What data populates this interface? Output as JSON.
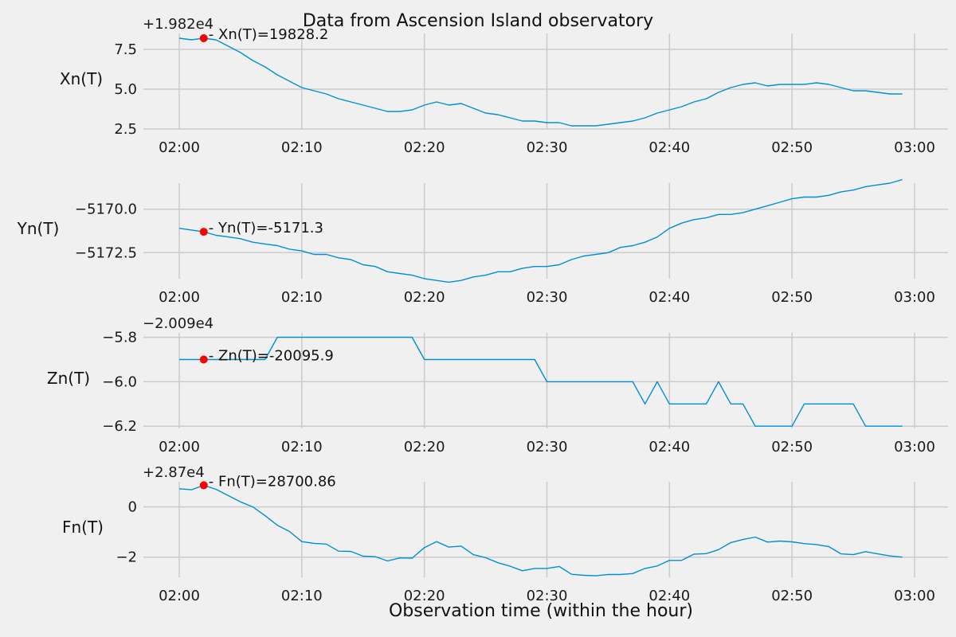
{
  "chart_data": {
    "type": "line",
    "title": "Data from  Ascension Island observatory",
    "xlabel": "Observation time (within the hour)",
    "x_tick_labels": [
      "02:00",
      "02:10",
      "02:20",
      "02:30",
      "02:40",
      "02:50",
      "03:00"
    ],
    "x_minutes": [
      0,
      1,
      2,
      3,
      4,
      5,
      6,
      7,
      8,
      9,
      10,
      11,
      12,
      13,
      14,
      15,
      16,
      17,
      18,
      19,
      20,
      21,
      22,
      23,
      24,
      25,
      26,
      27,
      28,
      29,
      30,
      31,
      32,
      33,
      34,
      35,
      36,
      37,
      38,
      39,
      40,
      41,
      42,
      43,
      44,
      45,
      46,
      47,
      48,
      49,
      50,
      51,
      52,
      53,
      54,
      55,
      56,
      57,
      58,
      59
    ],
    "grid": true,
    "line_color": "#008fd5",
    "marker_color": "#ff0000",
    "panels": [
      {
        "name": "Xn(T)",
        "ylabel": "Xn(T)",
        "offset_label": "+1.982e4",
        "yticks": [
          "7.5",
          "5.0",
          "2.5"
        ],
        "ytick_values": [
          19827.5,
          19825.0,
          19822.5
        ],
        "ylim": [
          19822.5,
          19828.5
        ],
        "values": [
          19828.2,
          19828.1,
          19828.2,
          19828.1,
          19827.7,
          19827.3,
          19826.8,
          19826.4,
          19825.9,
          19825.5,
          19825.1,
          19824.9,
          19824.7,
          19824.4,
          19824.2,
          19824.0,
          19823.8,
          19823.6,
          19823.6,
          19823.7,
          19824.0,
          19824.2,
          19824.0,
          19824.1,
          19823.8,
          19823.5,
          19823.4,
          19823.2,
          19823.0,
          19823.0,
          19822.9,
          19822.9,
          19822.7,
          19822.7,
          19822.7,
          19822.8,
          19822.9,
          19823.0,
          19823.2,
          19823.5,
          19823.7,
          19823.9,
          19824.2,
          19824.4,
          19824.8,
          19825.1,
          19825.3,
          19825.4,
          19825.2,
          19825.3,
          19825.3,
          19825.3,
          19825.4,
          19825.3,
          19825.1,
          19824.9,
          19824.9,
          19824.8,
          19824.7,
          19824.7
        ],
        "marker": {
          "minute": 2,
          "value": 19828.2,
          "label": "- Xn(T)=19828.2"
        }
      },
      {
        "name": "Yn(T)",
        "ylabel": "Yn(T)",
        "offset_label": "",
        "yticks": [
          "−5170.0",
          "−5172.5"
        ],
        "ytick_values": [
          -5170.0,
          -5172.5
        ],
        "ylim": [
          -5174.0,
          -5168.5
        ],
        "values": [
          -5171.1,
          -5171.2,
          -5171.3,
          -5171.5,
          -5171.6,
          -5171.7,
          -5171.9,
          -5172.0,
          -5172.1,
          -5172.3,
          -5172.4,
          -5172.6,
          -5172.6,
          -5172.8,
          -5172.9,
          -5173.2,
          -5173.3,
          -5173.6,
          -5173.7,
          -5173.8,
          -5174.0,
          -5174.1,
          -5174.2,
          -5174.1,
          -5173.9,
          -5173.8,
          -5173.6,
          -5173.6,
          -5173.4,
          -5173.3,
          -5173.3,
          -5173.2,
          -5172.9,
          -5172.7,
          -5172.6,
          -5172.5,
          -5172.2,
          -5172.1,
          -5171.9,
          -5171.6,
          -5171.1,
          -5170.8,
          -5170.6,
          -5170.5,
          -5170.3,
          -5170.3,
          -5170.2,
          -5170.0,
          -5169.8,
          -5169.6,
          -5169.4,
          -5169.3,
          -5169.3,
          -5169.2,
          -5169.0,
          -5168.9,
          -5168.7,
          -5168.6,
          -5168.5,
          -5168.3
        ],
        "marker": {
          "minute": 2,
          "value": -5171.3,
          "label": "- Yn(T)=-5171.3"
        }
      },
      {
        "name": "Zn(T)",
        "ylabel": "Zn(T)",
        "offset_label": "−2.009e4",
        "yticks": [
          "−5.8",
          "−6.0",
          "−6.2"
        ],
        "ytick_values": [
          -20095.8,
          -20096.0,
          -20096.2
        ],
        "ylim": [
          -20096.21,
          -20095.78
        ],
        "values": [
          -20095.9,
          -20095.9,
          -20095.9,
          -20095.9,
          -20095.9,
          -20095.9,
          -20095.9,
          -20095.9,
          -20095.8,
          -20095.8,
          -20095.8,
          -20095.8,
          -20095.8,
          -20095.8,
          -20095.8,
          -20095.8,
          -20095.8,
          -20095.8,
          -20095.8,
          -20095.8,
          -20095.9,
          -20095.9,
          -20095.9,
          -20095.9,
          -20095.9,
          -20095.9,
          -20095.9,
          -20095.9,
          -20095.9,
          -20095.9,
          -20096.0,
          -20096.0,
          -20096.0,
          -20096.0,
          -20096.0,
          -20096.0,
          -20096.0,
          -20096.0,
          -20096.1,
          -20096.0,
          -20096.1,
          -20096.1,
          -20096.1,
          -20096.1,
          -20096.0,
          -20096.1,
          -20096.1,
          -20096.2,
          -20096.2,
          -20096.2,
          -20096.2,
          -20096.1,
          -20096.1,
          -20096.1,
          -20096.1,
          -20096.1,
          -20096.2,
          -20096.2,
          -20096.2,
          -20096.2
        ],
        "marker": {
          "minute": 2,
          "value": -20095.9,
          "label": "- Zn(T)=-20095.9"
        }
      },
      {
        "name": "Fn(T)",
        "ylabel": "Fn(T)",
        "offset_label": "+2.87e4",
        "yticks": [
          "0",
          "−2"
        ],
        "ytick_values": [
          28700.0,
          28698.0
        ],
        "ylim": [
          28697.2,
          28701.0
        ],
        "values": [
          28700.72,
          28700.68,
          28700.86,
          28700.7,
          28700.45,
          28700.2,
          28700.0,
          28699.65,
          28699.27,
          28699.02,
          28698.62,
          28698.55,
          28698.52,
          28698.24,
          28698.23,
          28698.04,
          28698.02,
          28697.85,
          28697.97,
          28697.96,
          28698.38,
          28698.62,
          28698.4,
          28698.44,
          28698.1,
          28697.98,
          28697.78,
          28697.64,
          28697.46,
          28697.55,
          28697.55,
          28697.63,
          28697.32,
          28697.28,
          28697.26,
          28697.31,
          28697.31,
          28697.35,
          28697.55,
          28697.65,
          28697.87,
          28697.87,
          28698.12,
          28698.14,
          28698.3,
          28698.58,
          28698.7,
          28698.8,
          28698.6,
          28698.64,
          28698.61,
          28698.54,
          28698.5,
          28698.42,
          28698.13,
          28698.1,
          28698.22,
          28698.13,
          28698.05,
          28698.0
        ],
        "marker": {
          "minute": 2,
          "value": 28700.86,
          "label": "- Fn(T)=28700.86"
        }
      }
    ]
  }
}
